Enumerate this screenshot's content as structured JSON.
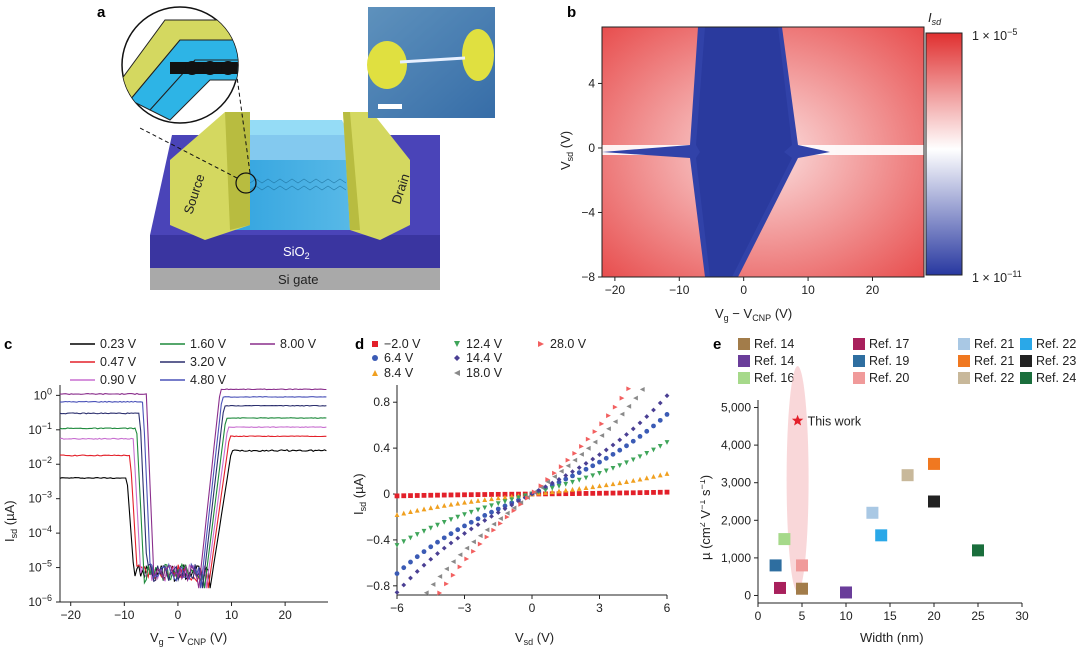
{
  "panel_labels": [
    "a",
    "b",
    "c",
    "d",
    "e"
  ],
  "panel_a": {
    "source_label": "Source",
    "drain_label": "Drain",
    "sio2_label": "SiO",
    "sio2_sub": "2",
    "si_gate_label": "Si gate"
  },
  "panel_b": {
    "colorbar_title": "I",
    "colorbar_title_sub": "sd",
    "colorbar_max": "1 × 10",
    "colorbar_max_exp": "−5",
    "colorbar_min": "1 × 10",
    "colorbar_min_exp": "−11",
    "xlabel": "V",
    "xlabel_sub1": "g",
    "xlabel_mid": " − V",
    "xlabel_sub2": "CNP",
    "xlabel_unit": " (V)",
    "ylabel": "V",
    "ylabel_sub": "sd",
    "ylabel_unit": " (V)",
    "xticks": [
      "−20",
      "−10",
      "0",
      "10",
      "20"
    ],
    "yticks": [
      "4",
      "0",
      "−4",
      "−8"
    ]
  },
  "chart_data": [
    {
      "panel": "c",
      "type": "line",
      "y_scale": "log",
      "xlabel": "Vg − VCNP (V)",
      "ylabel": "Isd (µA)",
      "xlim": [
        -22,
        28
      ],
      "ylim": [
        1e-06,
        2
      ],
      "xticks": [
        "−20",
        "−10",
        "0",
        "10",
        "20"
      ],
      "yticks": [
        "10^0",
        "10^-1",
        "10^-2",
        "10^-3",
        "10^-4",
        "10^-5",
        "10^-6"
      ],
      "series": [
        {
          "name": "0.23 V",
          "color": "#000000",
          "left_plateau": 0.004,
          "right_plateau": 0.025
        },
        {
          "name": "0.47 V",
          "color": "#e3202a",
          "left_plateau": 0.018,
          "right_plateau": 0.065
        },
        {
          "name": "0.90 V",
          "color": "#c86fd0",
          "left_plateau": 0.055,
          "right_plateau": 0.12
        },
        {
          "name": "1.60 V",
          "color": "#1e8a3c",
          "left_plateau": 0.11,
          "right_plateau": 0.22
        },
        {
          "name": "3.20 V",
          "color": "#2b2f6e",
          "left_plateau": 0.3,
          "right_plateau": 0.5
        },
        {
          "name": "4.80 V",
          "color": "#4a52b8",
          "left_plateau": 0.65,
          "right_plateau": 0.9
        },
        {
          "name": "8.00 V",
          "color": "#8a2e8c",
          "left_plateau": 1.1,
          "right_plateau": 1.5
        }
      ]
    },
    {
      "panel": "d",
      "type": "scatter",
      "xlabel": "Vsd (V)",
      "ylabel": "Isd (µA)",
      "xlim": [
        -6,
        6
      ],
      "ylim": [
        -0.88,
        0.95
      ],
      "xticks": [
        "−6",
        "−3",
        "0",
        "3",
        "6"
      ],
      "yticks": [
        "0.8",
        "0.4",
        "0",
        "−0.4",
        "−0.8"
      ],
      "series": [
        {
          "name": "−2.0 V",
          "color": "#e3202a",
          "marker": "square",
          "slope": 0.002,
          "xmin": -6,
          "xmax": 6
        },
        {
          "name": "6.4 V",
          "color": "#3b5bb5",
          "marker": "circle",
          "slope": 0.085,
          "xmin": -6,
          "xmax": 6
        },
        {
          "name": "8.4 V",
          "color": "#f0a020",
          "marker": "triangle-up",
          "slope": 0.022,
          "xmin": -6,
          "xmax": 6
        },
        {
          "name": "12.4 V",
          "color": "#3fa55a",
          "marker": "triangle-down",
          "slope": 0.055,
          "xmin": -6,
          "xmax": 6
        },
        {
          "name": "14.4 V",
          "color": "#4a3f93",
          "marker": "diamond",
          "slope": 0.105,
          "xmin": -6,
          "xmax": 6
        },
        {
          "name": "18.0 V",
          "color": "#8a8a8a",
          "marker": "triangle-left",
          "slope": 0.15,
          "xmin": -5.3,
          "xmax": 5.8
        },
        {
          "name": "28.0 V",
          "color": "#f26060",
          "marker": "triangle-right",
          "slope": 0.18,
          "xmin": -4.7,
          "xmax": 4.5
        }
      ]
    },
    {
      "panel": "e",
      "type": "scatter",
      "xlabel": "Width (nm)",
      "ylabel": "µ (cm² V⁻¹ s⁻¹)",
      "xlim": [
        0,
        30
      ],
      "ylim": [
        -200,
        5200
      ],
      "xticks": [
        "0",
        "5",
        "10",
        "15",
        "20",
        "25",
        "30"
      ],
      "yticks": [
        "5,000",
        "4,000",
        "3,000",
        "2,000",
        "1,000",
        "0"
      ],
      "annotation": "This work",
      "this_work": {
        "x": 4.5,
        "y": 4650,
        "color": "#e3202a"
      },
      "series": [
        {
          "name": "Ref. 14",
          "color": "#a27c4a",
          "points": [
            [
              5,
              180
            ]
          ]
        },
        {
          "name": "Ref. 14",
          "color": "#6a3d9a",
          "points": [
            [
              10,
              80
            ]
          ]
        },
        {
          "name": "Ref. 16",
          "color": "#a6d98a",
          "points": [
            [
              3,
              1500
            ]
          ]
        },
        {
          "name": "Ref. 17",
          "color": "#a8205c",
          "points": [
            [
              2.5,
              200
            ]
          ]
        },
        {
          "name": "Ref. 19",
          "color": "#2e6ea0",
          "points": [
            [
              2,
              800
            ]
          ]
        },
        {
          "name": "Ref. 20",
          "color": "#f09a9a",
          "points": [
            [
              5,
              800
            ]
          ]
        },
        {
          "name": "Ref. 21",
          "color": "#a9c8e4",
          "points": [
            [
              13,
              2200
            ]
          ]
        },
        {
          "name": "Ref. 21",
          "color": "#f07820",
          "points": [
            [
              20,
              3500
            ]
          ]
        },
        {
          "name": "Ref. 22",
          "color": "#c8b89a",
          "points": [
            [
              17,
              3200
            ]
          ]
        },
        {
          "name": "Ref. 22",
          "color": "#2aa8e8",
          "points": [
            [
              14,
              1600
            ]
          ]
        },
        {
          "name": "Ref. 23",
          "color": "#222222",
          "points": [
            [
              20,
              2500
            ]
          ]
        },
        {
          "name": "Ref. 24",
          "color": "#1a6e3c",
          "points": [
            [
              25,
              1200
            ]
          ]
        }
      ]
    }
  ]
}
